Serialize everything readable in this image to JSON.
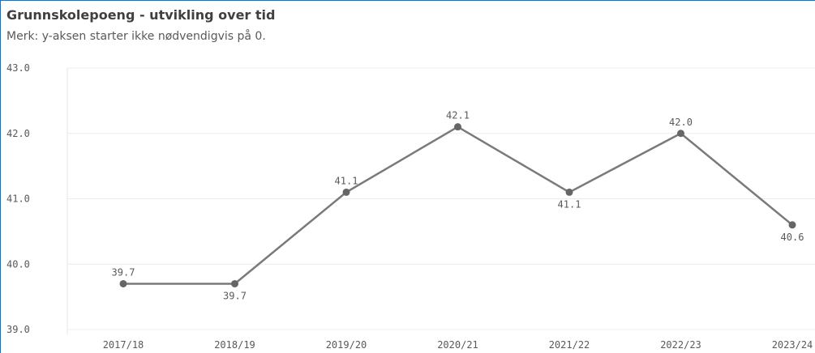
{
  "chart_data": {
    "type": "line",
    "title": "Grunnskolepoeng - utvikling over tid",
    "subtitle": "Merk: y-aksen starter ikke nødvendigvis på 0.",
    "categories": [
      "2017/18",
      "2018/19",
      "2019/20",
      "2020/21",
      "2021/22",
      "2022/23",
      "2023/24"
    ],
    "values": [
      39.7,
      39.7,
      41.1,
      42.1,
      41.1,
      42.0,
      40.6
    ],
    "value_labels": [
      "39.7",
      "39.7",
      "41.1",
      "42.1",
      "41.1",
      "42.0",
      "40.6"
    ],
    "color": "#7a7a7a",
    "ylim": [
      39,
      43
    ],
    "yticks": [
      {
        "value": 39,
        "label": "39.0"
      },
      {
        "value": 40,
        "label": "40.0"
      },
      {
        "value": 41,
        "label": "41.0"
      },
      {
        "value": 42,
        "label": "42.0"
      },
      {
        "value": 43,
        "label": "43.0"
      }
    ],
    "grid": true
  }
}
